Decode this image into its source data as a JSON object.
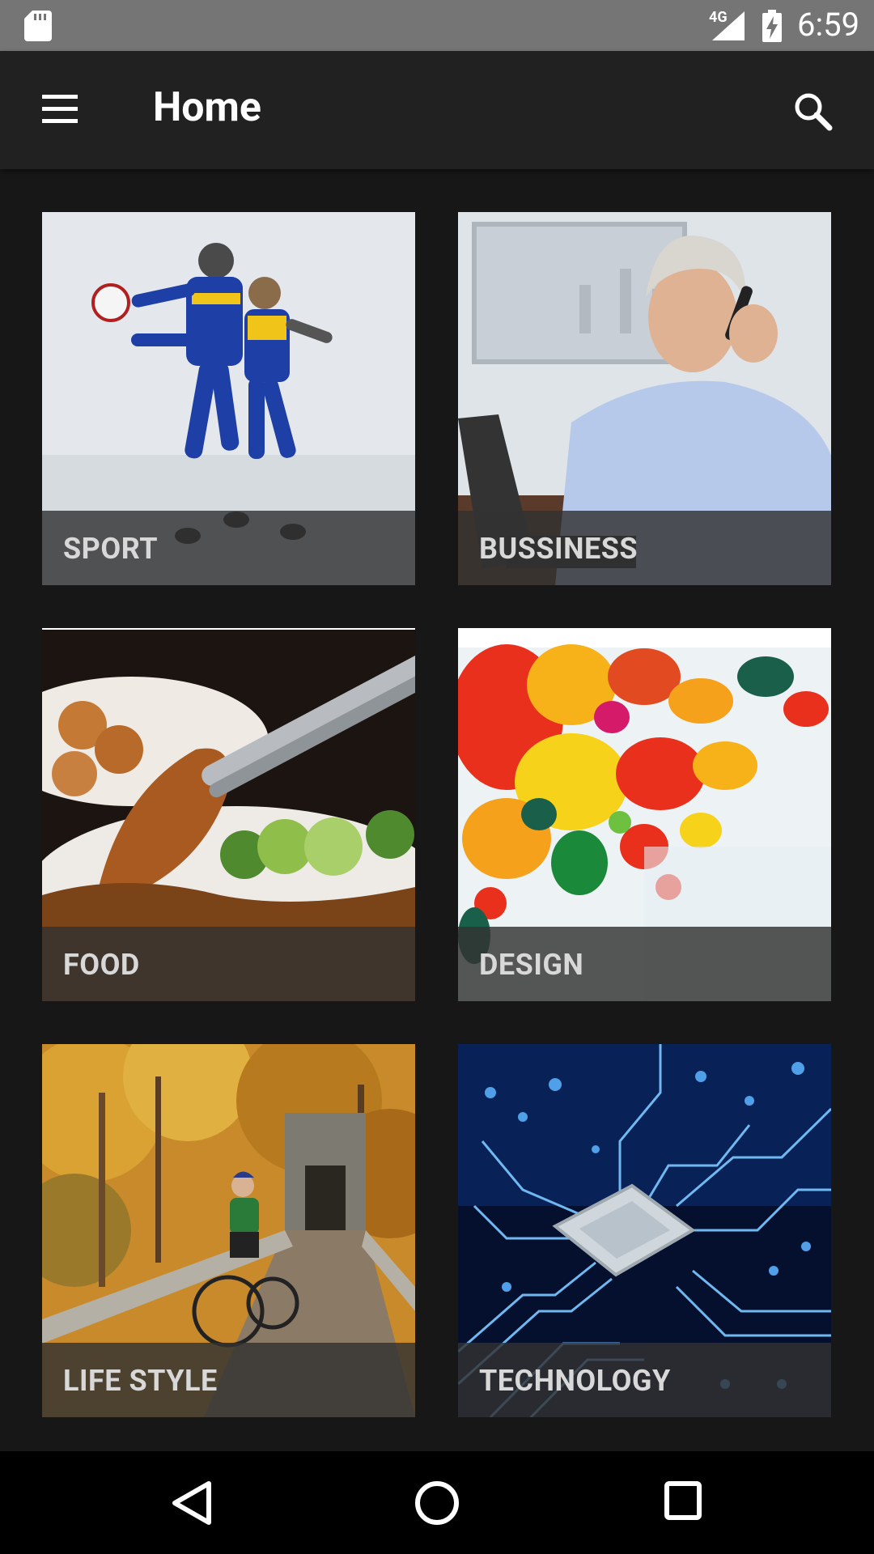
{
  "status_bar": {
    "network": "4G",
    "time": "6:59",
    "icons": [
      "sd-card-icon",
      "cell-signal-icon",
      "battery-charging-icon"
    ]
  },
  "app_bar": {
    "title": "Home",
    "icons": [
      "menu-icon",
      "search-icon"
    ]
  },
  "categories": [
    {
      "label": "SPORT"
    },
    {
      "label": "BUSSINESS"
    },
    {
      "label": "FOOD"
    },
    {
      "label": "DESIGN"
    },
    {
      "label": "LIFE STYLE"
    },
    {
      "label": "TECHNOLOGY"
    }
  ],
  "nav_bar": {
    "icons": [
      "back-icon",
      "home-icon",
      "recents-icon"
    ]
  },
  "colors": {
    "status_bar": "#757575",
    "app_bar": "#212121",
    "background": "#171717",
    "caption_overlay": "#323232",
    "caption_text": "#d8d8d8"
  }
}
